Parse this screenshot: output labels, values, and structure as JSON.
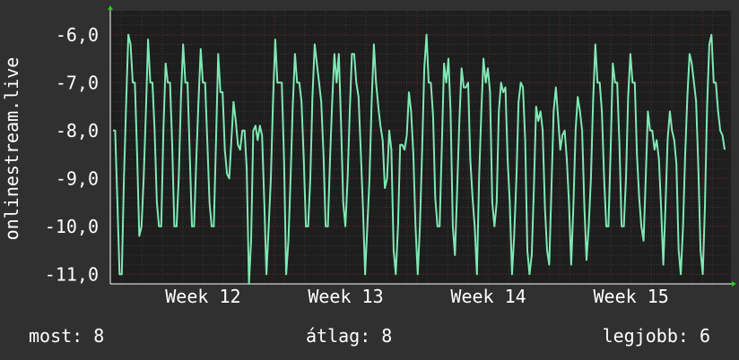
{
  "chart_data": {
    "type": "line",
    "ylabel": "onlinestream.live",
    "x_tick_labels": [
      "Week 12",
      "Week 13",
      "Week 14",
      "Week 15"
    ],
    "y_ticks": [
      -6,
      -7,
      -8,
      -9,
      -10,
      -11
    ],
    "y_tick_labels": [
      "-6,0",
      "-7,0",
      "-8,0",
      "-9,0",
      "-10,0",
      "-11,0"
    ],
    "ylim": [
      -11.2,
      -5.5
    ],
    "x_range_weeks": [
      11.35,
      15.7
    ],
    "grid": true,
    "colors": {
      "background": "#303030",
      "plot": "#1e1e1e",
      "grid_major": "#6a2a2a",
      "grid_minor": "#3a3a3a",
      "line": "#7fe8b4",
      "axis_arrow": "#22cc22"
    },
    "series": [
      {
        "values": [
          -8,
          -8,
          -9.5,
          -11,
          -11,
          -9,
          -7.4,
          -6,
          -6.2,
          -7,
          -7,
          -8.5,
          -10.2,
          -10,
          -9,
          -7.6,
          -6.1,
          -7,
          -7,
          -8,
          -9.5,
          -10,
          -10,
          -8,
          -6.6,
          -7,
          -7,
          -8.3,
          -10,
          -10,
          -9,
          -7.3,
          -6.2,
          -7,
          -7,
          -8.5,
          -10,
          -10,
          -8.6,
          -7.4,
          -6.3,
          -7,
          -7,
          -8.2,
          -9.5,
          -10,
          -10,
          -8.2,
          -6.4,
          -7.2,
          -7.2,
          -8.4,
          -8.9,
          -9,
          -8.2,
          -7.4,
          -7.8,
          -8.3,
          -8.4,
          -8,
          -8,
          -8.8,
          -11.2,
          -10.3,
          -8,
          -7.9,
          -8.2,
          -7.9,
          -8.1,
          -9.5,
          -11,
          -10,
          -9,
          -7.4,
          -6.1,
          -7,
          -7,
          -7,
          -8.6,
          -11,
          -10.3,
          -9,
          -7.5,
          -6.4,
          -7,
          -7,
          -7.4,
          -8.6,
          -10,
          -10,
          -9,
          -7.3,
          -6.2,
          -6.6,
          -7,
          -7.4,
          -8.5,
          -10,
          -10,
          -8.6,
          -7.4,
          -6.4,
          -7,
          -6.4,
          -7.8,
          -9.5,
          -10,
          -9,
          -7.6,
          -6.4,
          -6.4,
          -7,
          -7.3,
          -8.4,
          -9.6,
          -11,
          -10,
          -9,
          -7.4,
          -6.2,
          -7,
          -7.5,
          -7.9,
          -8.2,
          -9.2,
          -9,
          -8,
          -8.4,
          -10.5,
          -11,
          -10,
          -8.3,
          -8.3,
          -8.4,
          -8.1,
          -7.2,
          -7.6,
          -8.5,
          -10,
          -11,
          -10,
          -8.4,
          -6.7,
          -6,
          -7,
          -7,
          -7.7,
          -9.4,
          -10,
          -10,
          -8.3,
          -6.6,
          -7,
          -6.5,
          -7.6,
          -10,
          -10.6,
          -9.2,
          -7.8,
          -6.7,
          -7.1,
          -7.1,
          -7,
          -8.6,
          -9.4,
          -10,
          -11,
          -9,
          -7.6,
          -6.5,
          -7,
          -6.7,
          -7.2,
          -9.5,
          -10,
          -9.5,
          -7.6,
          -7,
          -7.2,
          -7.1,
          -8.6,
          -9.5,
          -11,
          -10.2,
          -9,
          -7.4,
          -7,
          -7.1,
          -8.2,
          -10.5,
          -11,
          -10.6,
          -9.2,
          -7.5,
          -7.8,
          -7.6,
          -8,
          -9.6,
          -10.5,
          -10.8,
          -9.2,
          -7.6,
          -7.1,
          -7.7,
          -8.4,
          -8.1,
          -8,
          -8.6,
          -9.5,
          -10.8,
          -9.6,
          -8,
          -7.3,
          -7.6,
          -8,
          -9.6,
          -10.7,
          -10,
          -9,
          -7.4,
          -6.2,
          -7,
          -7,
          -7.6,
          -9,
          -10,
          -10,
          -8.4,
          -6.6,
          -7,
          -7,
          -8.3,
          -10,
          -10,
          -9,
          -7.3,
          -6.4,
          -7,
          -7,
          -8.5,
          -9.4,
          -10,
          -10.3,
          -9,
          -7.6,
          -8,
          -8,
          -8.4,
          -8.2,
          -8.6,
          -9.6,
          -10.8,
          -9.6,
          -8.2,
          -7.6,
          -8,
          -8.2,
          -8.7,
          -10.5,
          -11,
          -10,
          -8.5,
          -7.3,
          -6.4,
          -6.6,
          -7,
          -7.4,
          -8.8,
          -10.5,
          -11,
          -9.6,
          -7.5,
          -6.2,
          -6,
          -7,
          -7,
          -7.6,
          -8,
          -8.1,
          -8.4
        ]
      }
    ]
  },
  "stats": {
    "last": "most: 8",
    "avg": "átlag: 8",
    "max": "legjobb: 6"
  }
}
